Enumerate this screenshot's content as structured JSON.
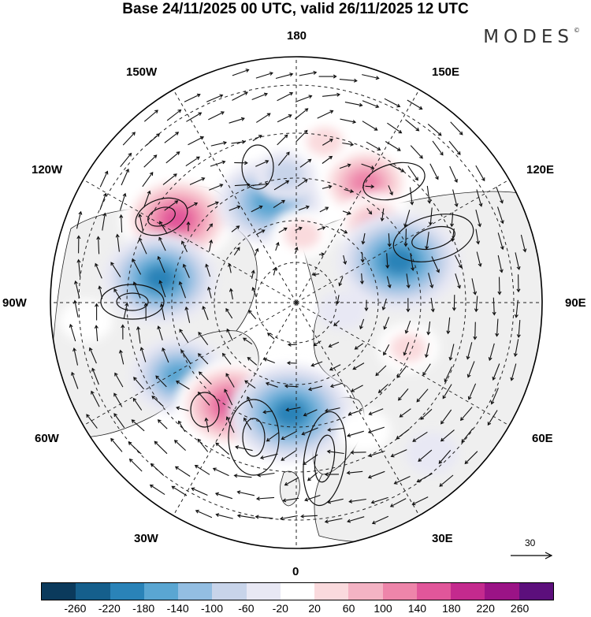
{
  "title": "Base 24/11/2025 00 UTC, valid 26/11/2025 12 UTC",
  "brand": "MODES",
  "brand_mark": "©",
  "longitude_labels": {
    "lon_180": "180",
    "lon_150w": "150W",
    "lon_150e": "150E",
    "lon_120w": "120W",
    "lon_120e": "120E",
    "lon_90w": "90W",
    "lon_90e": "90E",
    "lon_60w": "60W",
    "lon_60e": "60E",
    "lon_30w": "30W",
    "lon_30e": "30E",
    "lon_0": "0"
  },
  "reference_vector": {
    "value": "30",
    "icon": "arrow-right-icon"
  },
  "colorbar": {
    "colors": [
      "#0b3a5c",
      "#155f8c",
      "#2a83b8",
      "#5aa6d2",
      "#93bee2",
      "#c8d4ea",
      "#e8e8f4",
      "#ffffff",
      "#fadadd",
      "#f4b3c4",
      "#ee85aa",
      "#e1569a",
      "#c42a8e",
      "#9b1386",
      "#5c0f7c"
    ],
    "tick_labels": [
      "-260",
      "-220",
      "-180",
      "-140",
      "-100",
      "-60",
      "-20",
      "20",
      "60",
      "100",
      "140",
      "180",
      "220",
      "260"
    ]
  },
  "map_colors": {
    "land": "#efefef",
    "ocean": "#ffffff",
    "boundary": "#000000"
  },
  "anomalies": [
    {
      "name": "anomaly-pos-120w",
      "lon": -125,
      "lat": 45,
      "value": 180
    },
    {
      "name": "anomaly-neg-100w",
      "lon": -100,
      "lat": 47,
      "value": -180
    },
    {
      "name": "anomaly-neg-160w",
      "lon": -165,
      "lat": 57,
      "value": -160
    },
    {
      "name": "anomaly-neg-165w-ext",
      "lon": -175,
      "lat": 50,
      "value": -60
    },
    {
      "name": "anomaly-pos-150e",
      "lon": 150,
      "lat": 47,
      "value": 140
    },
    {
      "name": "anomaly-pos-140e",
      "lon": 135,
      "lat": 55,
      "value": 100
    },
    {
      "name": "anomaly-pos-165e",
      "lon": 170,
      "lat": 40,
      "value": 60
    },
    {
      "name": "anomaly-neg-110e",
      "lon": 112,
      "lat": 55,
      "value": -200
    },
    {
      "name": "anomaly-neg-65w",
      "lon": -58,
      "lat": 47,
      "value": -140
    },
    {
      "name": "anomaly-pos-35w",
      "lon": -32,
      "lat": 52,
      "value": 180
    },
    {
      "name": "anomaly-neg-10w",
      "lon": -3,
      "lat": 55,
      "value": -200
    },
    {
      "name": "anomaly-pos-60e",
      "lon": 68,
      "lat": 52,
      "value": 60
    },
    {
      "name": "anomaly-pos-25e",
      "lon": 28,
      "lat": 45,
      "value": 40
    },
    {
      "name": "anomaly-pos-85w",
      "lon": -85,
      "lat": 28,
      "value": 40
    },
    {
      "name": "anomaly-neg-40e",
      "lon": 42,
      "lat": 30,
      "value": -40
    },
    {
      "name": "anomaly-neg-75e",
      "lon": 80,
      "lat": 75,
      "value": -30
    },
    {
      "name": "anomaly-pos-175e",
      "lon": 175,
      "lat": 68,
      "value": 60
    }
  ]
}
